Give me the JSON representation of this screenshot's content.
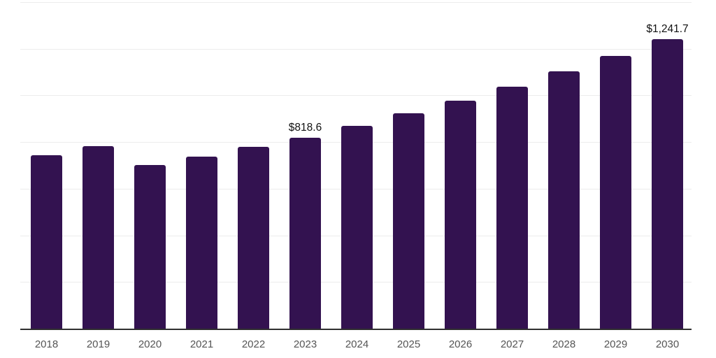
{
  "chart_data": {
    "type": "bar",
    "title": "",
    "xlabel": "",
    "ylabel": "",
    "categories": [
      "2018",
      "2019",
      "2020",
      "2021",
      "2022",
      "2023",
      "2024",
      "2025",
      "2026",
      "2027",
      "2028",
      "2029",
      "2030"
    ],
    "values": [
      743,
      782,
      701,
      737,
      779,
      818.6,
      868.8,
      922.1,
      978.6,
      1038.6,
      1102.3,
      1169.9,
      1241.7
    ],
    "value_labels": [
      "",
      "",
      "",
      "",
      "",
      "$818.6",
      "",
      "",
      "",
      "",
      "",
      "",
      "$1,241.7"
    ],
    "ylim": [
      0,
      1400
    ],
    "gridline_step": 200,
    "grid": true,
    "legend": "none",
    "y_axis_tick_labels_visible": false,
    "colors": {
      "bar": "#331250",
      "gridline": "#ececec",
      "axis_line": "#303030",
      "tick_label": "#555555",
      "data_label": "#111111",
      "background": "#ffffff"
    }
  }
}
